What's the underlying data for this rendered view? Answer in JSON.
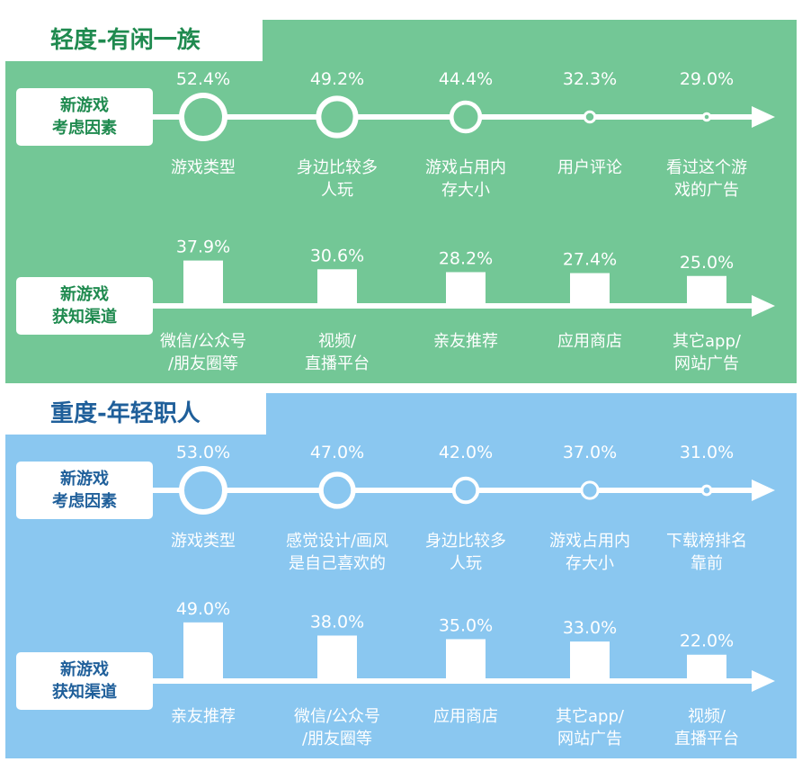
{
  "colors": {
    "green_panel": "#73c796",
    "blue_panel": "#8ac7f0",
    "green_text": "#1f8a4f",
    "blue_text": "#1f5f9a"
  },
  "chart_data": [
    {
      "type": "table",
      "title": "轻度-有闲一族",
      "rows": [
        {
          "label": [
            "新游戏",
            "考虑因素"
          ],
          "mark": "circle",
          "categories": [
            [
              "游戏类型"
            ],
            [
              "身边比较多",
              "人玩"
            ],
            [
              "游戏占用内",
              "存大小"
            ],
            [
              "用户评论"
            ],
            [
              "看过这个游",
              "戏的广告"
            ]
          ],
          "values": [
            52.4,
            49.2,
            44.4,
            32.3,
            29.0
          ],
          "value_labels": [
            "52.4%",
            "49.2%",
            "44.4%",
            "32.3%",
            "29.0%"
          ]
        },
        {
          "label": [
            "新游戏",
            "获知渠道"
          ],
          "mark": "bar",
          "categories": [
            [
              "微信/公众号",
              "/朋友圈等"
            ],
            [
              "视频/",
              "直播平台"
            ],
            [
              "亲友推荐"
            ],
            [
              "应用商店"
            ],
            [
              "其它app/",
              "网站广告"
            ]
          ],
          "values": [
            37.9,
            30.6,
            28.2,
            27.4,
            25.0
          ],
          "value_labels": [
            "37.9%",
            "30.6%",
            "28.2%",
            "27.4%",
            "25.0%"
          ]
        }
      ]
    },
    {
      "type": "table",
      "title": "重度-年轻职人",
      "rows": [
        {
          "label": [
            "新游戏",
            "考虑因素"
          ],
          "mark": "circle",
          "categories": [
            [
              "游戏类型"
            ],
            [
              "感觉设计/画风",
              "是自己喜欢的"
            ],
            [
              "身边比较多",
              "人玩"
            ],
            [
              "游戏占用内",
              "存大小"
            ],
            [
              "下载榜排名",
              "靠前"
            ]
          ],
          "values": [
            53.0,
            47.0,
            42.0,
            37.0,
            31.0
          ],
          "value_labels": [
            "53.0%",
            "47.0%",
            "42.0%",
            "37.0%",
            "31.0%"
          ]
        },
        {
          "label": [
            "新游戏",
            "获知渠道"
          ],
          "mark": "bar",
          "categories": [
            [
              "亲友推荐"
            ],
            [
              "微信/公众号",
              "/朋友圈等"
            ],
            [
              "应用商店"
            ],
            [
              "其它app/",
              "网站广告"
            ],
            [
              "视频/",
              "直播平台"
            ]
          ],
          "values": [
            49.0,
            38.0,
            35.0,
            33.0,
            22.0
          ],
          "value_labels": [
            "49.0%",
            "38.0%",
            "35.0%",
            "33.0%",
            "22.0%"
          ]
        }
      ]
    }
  ]
}
